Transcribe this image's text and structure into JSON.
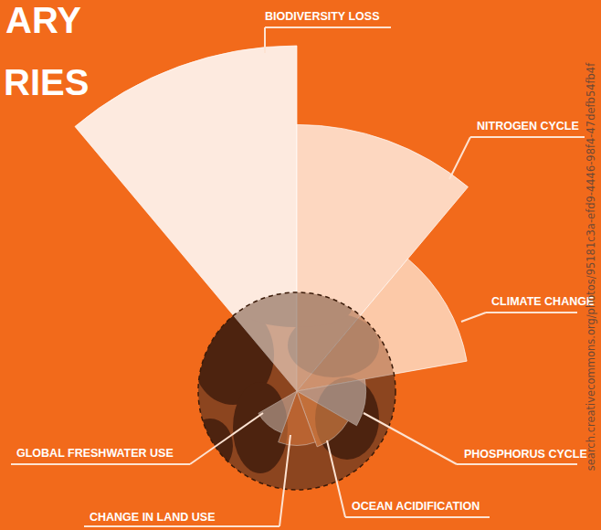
{
  "header": {
    "lines": [
      "ARY",
      "RIES"
    ]
  },
  "chart_data": {
    "type": "polar_area",
    "categories": [
      "BIODIVERSITY LOSS",
      "NITROGEN CYCLE",
      "CLIMATE CHANGE",
      "PHOSPHORUS CYCLE",
      "OCEAN ACIDIFICATION",
      "CHANGE IN LAND USE",
      "GLOBAL FRESHWATER USE"
    ],
    "values": [
      3.5,
      2.7,
      1.75,
      0.7,
      0.6,
      0.55,
      0.45
    ],
    "colors": [
      "#fdeadf",
      "#fdd7c0",
      "#fcc9a8",
      "#d9c7bd",
      "#e98d4f",
      "#d9793f",
      "#c9b2a5"
    ],
    "boundary": 1
  },
  "watermark": "search.creativecommons.org/photos/95181c3a-efd9-4446-98f4-47defb54fb4f"
}
